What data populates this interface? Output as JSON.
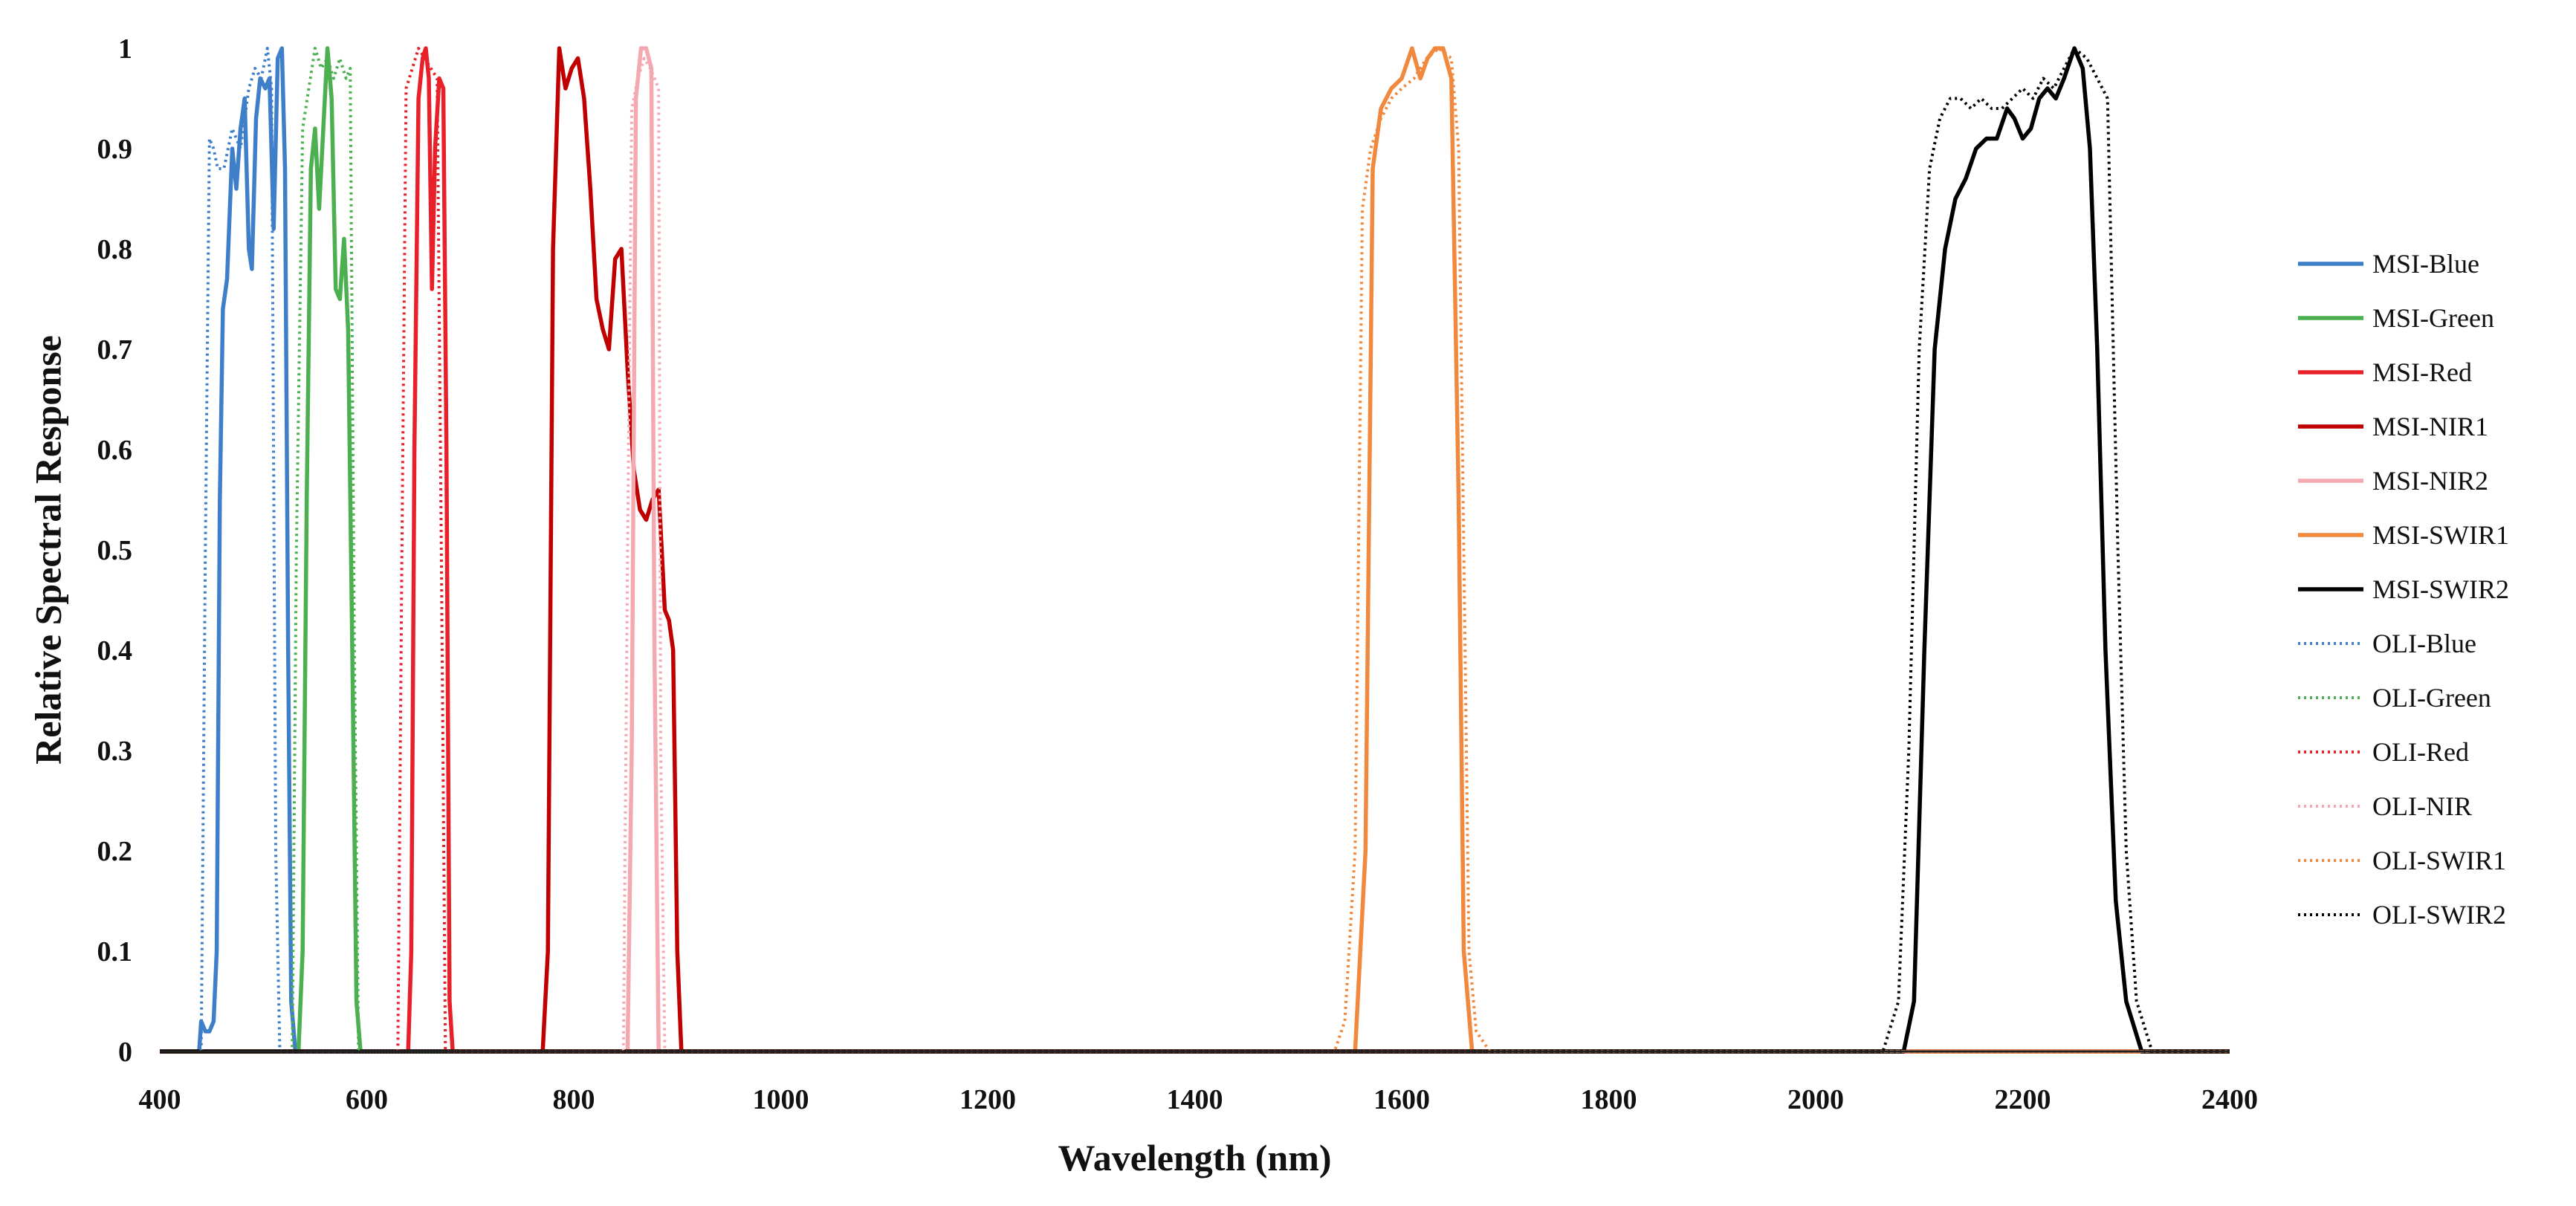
{
  "chart_data": {
    "type": "line",
    "title": "",
    "xlabel": "Wavelength (nm)",
    "ylabel": "Relative Spectral Response",
    "xlim": [
      400,
      2400
    ],
    "ylim": [
      0,
      1
    ],
    "x_ticks": [
      400,
      600,
      800,
      1000,
      1200,
      1400,
      1600,
      1800,
      2000,
      2200,
      2400
    ],
    "x_tick_labels": [
      "400",
      "600",
      "800",
      "1000",
      "1200",
      "1400",
      "1600",
      "1800",
      "2000",
      "2200",
      "2400"
    ],
    "y_ticks": [
      0,
      0.1,
      0.2,
      0.3,
      0.4,
      0.5,
      0.6,
      0.7,
      0.8,
      0.9,
      1
    ],
    "y_tick_labels": [
      "0",
      "0.1",
      "0.2",
      "0.3",
      "0.4",
      "0.5",
      "0.6",
      "0.7",
      "0.8",
      "0.9",
      "1"
    ],
    "grid": false,
    "legend": "right",
    "series": [
      {
        "name": "MSI-Blue",
        "color": "#3f7fc9",
        "style": "solid",
        "points": [
          [
            400,
            0
          ],
          [
            438,
            0
          ],
          [
            440,
            0.03
          ],
          [
            444,
            0.02
          ],
          [
            448,
            0.02
          ],
          [
            452,
            0.03
          ],
          [
            455,
            0.1
          ],
          [
            458,
            0.55
          ],
          [
            461,
            0.74
          ],
          [
            465,
            0.77
          ],
          [
            470,
            0.9
          ],
          [
            474,
            0.86
          ],
          [
            478,
            0.92
          ],
          [
            482,
            0.95
          ],
          [
            486,
            0.8
          ],
          [
            489,
            0.78
          ],
          [
            493,
            0.93
          ],
          [
            497,
            0.97
          ],
          [
            502,
            0.96
          ],
          [
            506,
            0.97
          ],
          [
            510,
            0.82
          ],
          [
            514,
            0.99
          ],
          [
            518,
            1.0
          ],
          [
            521,
            0.88
          ],
          [
            524,
            0.4
          ],
          [
            527,
            0.05
          ],
          [
            531,
            0
          ],
          [
            2400,
            0
          ]
        ]
      },
      {
        "name": "MSI-Green",
        "color": "#4caf50",
        "style": "solid",
        "points": [
          [
            400,
            0
          ],
          [
            534,
            0
          ],
          [
            538,
            0.1
          ],
          [
            542,
            0.55
          ],
          [
            546,
            0.88
          ],
          [
            550,
            0.92
          ],
          [
            554,
            0.84
          ],
          [
            558,
            0.92
          ],
          [
            562,
            1.0
          ],
          [
            566,
            0.95
          ],
          [
            570,
            0.76
          ],
          [
            574,
            0.75
          ],
          [
            578,
            0.81
          ],
          [
            582,
            0.72
          ],
          [
            586,
            0.4
          ],
          [
            590,
            0.05
          ],
          [
            594,
            0
          ],
          [
            2400,
            0
          ]
        ]
      },
      {
        "name": "MSI-Red",
        "color": "#e8202a",
        "style": "solid",
        "points": [
          [
            400,
            0
          ],
          [
            640,
            0
          ],
          [
            643,
            0.1
          ],
          [
            646,
            0.6
          ],
          [
            650,
            0.95
          ],
          [
            654,
            0.99
          ],
          [
            657,
            1.0
          ],
          [
            660,
            0.97
          ],
          [
            663,
            0.76
          ],
          [
            666,
            0.9
          ],
          [
            670,
            0.97
          ],
          [
            674,
            0.96
          ],
          [
            677,
            0.6
          ],
          [
            680,
            0.05
          ],
          [
            683,
            0
          ],
          [
            2400,
            0
          ]
        ]
      },
      {
        "name": "MSI-NIR1",
        "color": "#c00000",
        "style": "solid",
        "points": [
          [
            400,
            0
          ],
          [
            770,
            0
          ],
          [
            775,
            0.1
          ],
          [
            780,
            0.8
          ],
          [
            786,
            1.0
          ],
          [
            792,
            0.96
          ],
          [
            798,
            0.98
          ],
          [
            804,
            0.99
          ],
          [
            810,
            0.95
          ],
          [
            816,
            0.86
          ],
          [
            822,
            0.75
          ],
          [
            828,
            0.72
          ],
          [
            834,
            0.7
          ],
          [
            840,
            0.79
          ],
          [
            846,
            0.8
          ],
          [
            852,
            0.68
          ],
          [
            858,
            0.58
          ],
          [
            864,
            0.54
          ],
          [
            870,
            0.53
          ],
          [
            876,
            0.55
          ],
          [
            882,
            0.56
          ],
          [
            888,
            0.44
          ],
          [
            892,
            0.43
          ],
          [
            896,
            0.4
          ],
          [
            900,
            0.1
          ],
          [
            904,
            0
          ],
          [
            2400,
            0
          ]
        ]
      },
      {
        "name": "MSI-NIR2",
        "color": "#f4a9b0",
        "style": "solid",
        "points": [
          [
            400,
            0
          ],
          [
            852,
            0
          ],
          [
            856,
            0.3
          ],
          [
            860,
            0.95
          ],
          [
            865,
            1.0
          ],
          [
            870,
            1.0
          ],
          [
            875,
            0.98
          ],
          [
            878,
            0.4
          ],
          [
            882,
            0
          ],
          [
            2400,
            0
          ]
        ]
      },
      {
        "name": "MSI-SWIR1",
        "color": "#f0883e",
        "style": "solid",
        "points": [
          [
            400,
            0
          ],
          [
            1555,
            0
          ],
          [
            1565,
            0.2
          ],
          [
            1572,
            0.88
          ],
          [
            1580,
            0.94
          ],
          [
            1590,
            0.96
          ],
          [
            1600,
            0.97
          ],
          [
            1610,
            1.0
          ],
          [
            1618,
            0.97
          ],
          [
            1625,
            0.99
          ],
          [
            1632,
            1.0
          ],
          [
            1640,
            1.0
          ],
          [
            1648,
            0.97
          ],
          [
            1655,
            0.55
          ],
          [
            1660,
            0.1
          ],
          [
            1668,
            0
          ],
          [
            2400,
            0
          ]
        ]
      },
      {
        "name": "MSI-SWIR2",
        "color": "#000000",
        "style": "solid",
        "points": [
          [
            400,
            0
          ],
          [
            2085,
            0
          ],
          [
            2095,
            0.05
          ],
          [
            2105,
            0.4
          ],
          [
            2115,
            0.7
          ],
          [
            2125,
            0.8
          ],
          [
            2135,
            0.85
          ],
          [
            2145,
            0.87
          ],
          [
            2155,
            0.9
          ],
          [
            2165,
            0.91
          ],
          [
            2175,
            0.91
          ],
          [
            2185,
            0.94
          ],
          [
            2192,
            0.93
          ],
          [
            2200,
            0.91
          ],
          [
            2208,
            0.92
          ],
          [
            2216,
            0.95
          ],
          [
            2224,
            0.96
          ],
          [
            2232,
            0.95
          ],
          [
            2240,
            0.97
          ],
          [
            2250,
            1.0
          ],
          [
            2258,
            0.98
          ],
          [
            2265,
            0.9
          ],
          [
            2272,
            0.7
          ],
          [
            2280,
            0.4
          ],
          [
            2290,
            0.15
          ],
          [
            2300,
            0.05
          ],
          [
            2315,
            0
          ],
          [
            2400,
            0
          ]
        ]
      },
      {
        "name": "OLI-Blue",
        "color": "#3f7fc9",
        "style": "dotted",
        "points": [
          [
            400,
            0
          ],
          [
            440,
            0
          ],
          [
            444,
            0.5
          ],
          [
            448,
            0.91
          ],
          [
            452,
            0.9
          ],
          [
            456,
            0.88
          ],
          [
            462,
            0.88
          ],
          [
            470,
            0.92
          ],
          [
            478,
            0.9
          ],
          [
            486,
            0.96
          ],
          [
            492,
            0.98
          ],
          [
            498,
            0.97
          ],
          [
            504,
            1.0
          ],
          [
            508,
            0.96
          ],
          [
            512,
            0.2
          ],
          [
            516,
            0
          ],
          [
            2400,
            0
          ]
        ]
      },
      {
        "name": "OLI-Green",
        "color": "#4caf50",
        "style": "dotted",
        "points": [
          [
            400,
            0
          ],
          [
            528,
            0
          ],
          [
            532,
            0.5
          ],
          [
            538,
            0.92
          ],
          [
            544,
            0.96
          ],
          [
            550,
            1.0
          ],
          [
            556,
            0.98
          ],
          [
            562,
            0.99
          ],
          [
            568,
            0.97
          ],
          [
            574,
            0.99
          ],
          [
            580,
            0.97
          ],
          [
            584,
            0.98
          ],
          [
            588,
            0.4
          ],
          [
            592,
            0
          ],
          [
            2400,
            0
          ]
        ]
      },
      {
        "name": "OLI-Red",
        "color": "#e8202a",
        "style": "dotted",
        "points": [
          [
            400,
            0
          ],
          [
            630,
            0
          ],
          [
            634,
            0.5
          ],
          [
            638,
            0.96
          ],
          [
            644,
            0.98
          ],
          [
            650,
            1.0
          ],
          [
            656,
            0.99
          ],
          [
            662,
            0.98
          ],
          [
            668,
            0.97
          ],
          [
            672,
            0.5
          ],
          [
            676,
            0
          ],
          [
            2400,
            0
          ]
        ]
      },
      {
        "name": "OLI-NIR",
        "color": "#f4a9b0",
        "style": "dotted",
        "points": [
          [
            400,
            0
          ],
          [
            848,
            0
          ],
          [
            852,
            0.5
          ],
          [
            856,
            0.94
          ],
          [
            862,
            0.97
          ],
          [
            868,
            0.99
          ],
          [
            874,
            0.98
          ],
          [
            878,
            0.97
          ],
          [
            882,
            0.96
          ],
          [
            884,
            0.3
          ],
          [
            888,
            0
          ],
          [
            2400,
            0
          ]
        ]
      },
      {
        "name": "OLI-SWIR1",
        "color": "#f0883e",
        "style": "dotted",
        "points": [
          [
            400,
            0
          ],
          [
            1535,
            0
          ],
          [
            1545,
            0.03
          ],
          [
            1555,
            0.2
          ],
          [
            1562,
            0.84
          ],
          [
            1570,
            0.9
          ],
          [
            1580,
            0.93
          ],
          [
            1590,
            0.95
          ],
          [
            1600,
            0.96
          ],
          [
            1612,
            0.97
          ],
          [
            1624,
            0.99
          ],
          [
            1636,
            1.0
          ],
          [
            1648,
            0.99
          ],
          [
            1655,
            0.9
          ],
          [
            1660,
            0.5
          ],
          [
            1665,
            0.1
          ],
          [
            1672,
            0.02
          ],
          [
            1685,
            0
          ],
          [
            2400,
            0
          ]
        ]
      },
      {
        "name": "OLI-SWIR2",
        "color": "#000000",
        "style": "dotted",
        "points": [
          [
            400,
            0
          ],
          [
            2065,
            0
          ],
          [
            2080,
            0.05
          ],
          [
            2090,
            0.3
          ],
          [
            2100,
            0.7
          ],
          [
            2110,
            0.88
          ],
          [
            2120,
            0.93
          ],
          [
            2130,
            0.95
          ],
          [
            2140,
            0.95
          ],
          [
            2150,
            0.94
          ],
          [
            2160,
            0.95
          ],
          [
            2170,
            0.94
          ],
          [
            2180,
            0.94
          ],
          [
            2190,
            0.95
          ],
          [
            2200,
            0.96
          ],
          [
            2210,
            0.95
          ],
          [
            2220,
            0.97
          ],
          [
            2230,
            0.96
          ],
          [
            2240,
            0.98
          ],
          [
            2250,
            1.0
          ],
          [
            2262,
            0.99
          ],
          [
            2272,
            0.97
          ],
          [
            2282,
            0.95
          ],
          [
            2292,
            0.5
          ],
          [
            2300,
            0.2
          ],
          [
            2310,
            0.05
          ],
          [
            2325,
            0
          ],
          [
            2400,
            0
          ]
        ]
      }
    ]
  }
}
